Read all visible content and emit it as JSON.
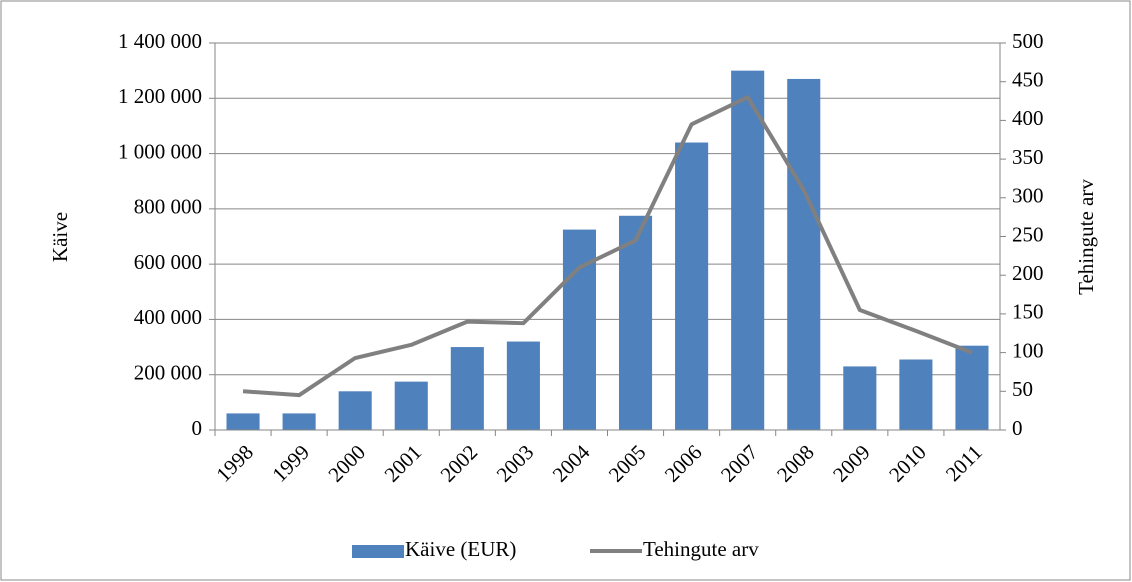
{
  "chart_data": {
    "type": "bar",
    "categories": [
      "1998",
      "1999",
      "2000",
      "2001",
      "2002",
      "2003",
      "2004",
      "2005",
      "2006",
      "2007",
      "2008",
      "2009",
      "2010",
      "2011"
    ],
    "y_label": "Käive",
    "y2_label": "Tehingute arv",
    "series": [
      {
        "name": "Käive (EUR)",
        "type": "bar",
        "color": "#4f81bd",
        "values": [
          60000,
          60000,
          140000,
          175000,
          300000,
          320000,
          725000,
          775000,
          1040000,
          1300000,
          1270000,
          230000,
          255000,
          305000
        ]
      },
      {
        "name": "Tehingute arv",
        "type": "line",
        "axis": "y2",
        "color": "#808080",
        "values": [
          50,
          45,
          93,
          110,
          140,
          138,
          210,
          245,
          395,
          430,
          310,
          155,
          128,
          100
        ]
      }
    ],
    "ylim": [
      0,
      1400000
    ],
    "yticks": [
      0,
      {
        "value": 200000,
        "label": "200 000"
      },
      {
        "value": 400000,
        "label": "400 000"
      },
      {
        "value": 600000,
        "label": "600 000"
      },
      {
        "value": 800000,
        "label": "800 000"
      },
      {
        "value": 1000000,
        "label": "1 000 000"
      },
      {
        "value": 1200000,
        "label": "1 200 000"
      },
      {
        "value": 1400000,
        "label": "1 400 000"
      }
    ],
    "y2lim": [
      0,
      500
    ],
    "y2ticks": [
      0,
      50,
      100,
      150,
      200,
      250,
      300,
      350,
      400,
      450,
      500
    ],
    "grid": true,
    "legend": "bottom"
  }
}
